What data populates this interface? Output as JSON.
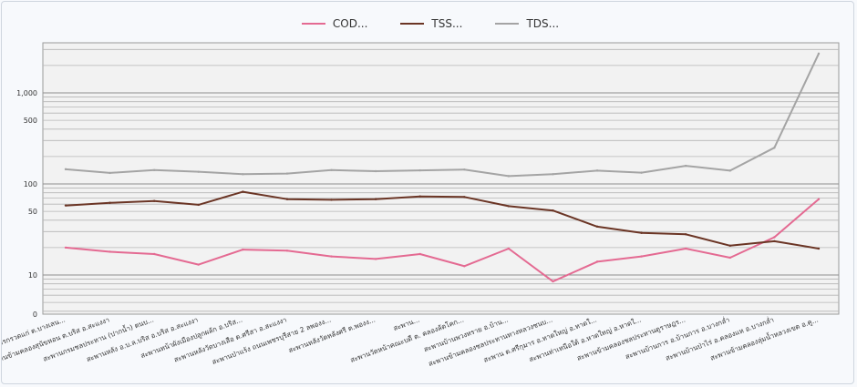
{
  "chart_data": {
    "type": "line",
    "yscale": "log",
    "legend_position": "top-center",
    "y_tick_labels": [
      "0",
      "10",
      "50",
      "100",
      "500",
      "1,000"
    ],
    "y_tick_values": [
      1,
      10,
      50,
      100,
      500,
      1000
    ],
    "ylim": [
      1,
      3000
    ],
    "categories": [
      "สะพานสะพานลูกแกรกรวดแก่ ต.บางเลน...",
      "สะพานข้ามคลองสุนัขหอน ต.บริส อ.สะแงงา",
      "สะพานกรมชลประทาน (ปากน้ำ) ตนบ...",
      "สะพานหลัง อ.บ.ล.บริส อ.บริส อ.สะแงงา",
      "สะพานหน้าผังเมืองปลูกผลัก อ.บริส...",
      "สะพานหลังวัดบางเสือ ต.ศรีสา อ.สะแงงา",
      "สะพานป่าแร้ง ถนนเพชรบุรีสาย 2 ลพองง...",
      "สะพานหลังวัดหลังศรี ต.พองง...",
      "สะพาน...",
      "สะพานวัดหน้าคณะบดี ต. คลองลัดโคก...",
      "สะพานบ้านพวงทราย อ.บ้าน...",
      "สะพานข้ามคลองชลประทานทางหลวงชนบ...",
      "สะพาน ต.ศรีกุมาร อ.หาดใหญ่ อ.หาดใ...",
      "สะพานท่าเหนือใต้ อ.หาดใหญ่ อ.หาดใ...",
      "สะพานข้ามคลองชลประทานดูราษฎร...",
      "สะพานบ้านการ อ.บ้านการ อ.บางกล่ำ",
      "สะพานบ้านป่าไร่ อ.คลองแห อ.บางกล่ำ",
      "สะพานข้ามคลองลุ่มน้ำหลวงเขต อ.คู..."
    ],
    "series": [
      {
        "name": "COD...",
        "color": "#e46a92",
        "values": [
          20,
          18,
          17,
          13,
          19,
          18.5,
          16,
          15,
          17,
          12.5,
          19.5,
          8.5,
          14,
          16,
          19.5,
          15.5,
          26,
          68
        ]
      },
      {
        "name": "TSS...",
        "color": "#6b3525",
        "values": [
          58,
          62,
          65,
          59,
          82,
          68,
          67,
          68,
          73,
          72,
          57,
          51,
          34,
          29,
          28,
          21,
          23.5,
          19.5
        ]
      },
      {
        "name": "TDS...",
        "color": "#a4a4a4",
        "values": [
          145,
          132,
          142,
          136,
          128,
          130,
          142,
          138,
          141,
          144,
          122,
          128,
          140,
          133,
          158,
          140,
          250,
          2700
        ]
      }
    ]
  }
}
